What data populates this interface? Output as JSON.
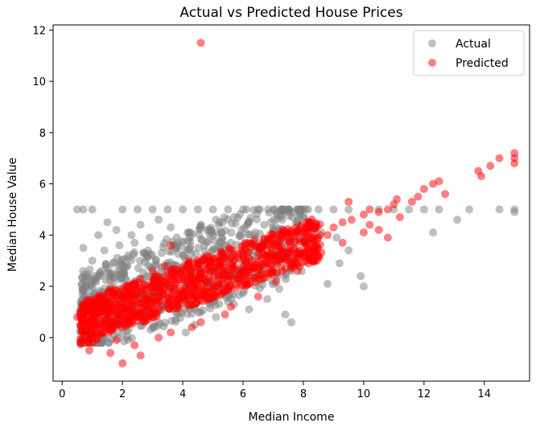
{
  "chart_data": {
    "type": "scatter",
    "title": "Actual vs Predicted House Prices",
    "xlabel": "Median Income",
    "ylabel": "Median House Value",
    "xlim": [
      -0.3,
      15.5
    ],
    "ylim": [
      -1.7,
      12.2
    ],
    "xticks": [
      0,
      2,
      4,
      6,
      8,
      10,
      12,
      14
    ],
    "yticks": [
      0,
      2,
      4,
      6,
      8,
      10,
      12
    ],
    "grid": false,
    "legend_position": "top-right",
    "series": [
      {
        "name": "Actual",
        "color": "#808080",
        "opacity": 0.5,
        "points": [
          [
            0.5,
            5.0
          ],
          [
            0.7,
            5.0
          ],
          [
            1.0,
            5.0
          ],
          [
            2.0,
            5.0
          ],
          [
            2.5,
            5.0
          ],
          [
            3.0,
            5.0
          ],
          [
            3.5,
            5.0
          ],
          [
            4.0,
            5.0
          ],
          [
            4.5,
            5.0
          ],
          [
            5.0,
            5.0
          ],
          [
            5.5,
            5.0
          ],
          [
            6.0,
            5.0
          ],
          [
            6.5,
            5.0
          ],
          [
            7.0,
            5.0
          ],
          [
            7.5,
            5.0
          ],
          [
            8.0,
            5.0
          ],
          [
            8.5,
            5.0
          ],
          [
            9.0,
            5.0
          ],
          [
            9.5,
            5.0
          ],
          [
            10.5,
            5.0
          ],
          [
            11.0,
            5.0
          ],
          [
            11.5,
            5.0
          ],
          [
            12.0,
            5.0
          ],
          [
            12.5,
            5.0
          ],
          [
            13.5,
            5.0
          ],
          [
            14.5,
            5.0
          ],
          [
            15.0,
            5.0
          ],
          [
            15.0,
            4.9
          ],
          [
            0.7,
            3.5
          ],
          [
            1.2,
            4.0
          ],
          [
            1.5,
            4.5
          ],
          [
            1.8,
            4.2
          ],
          [
            2.3,
            4.0
          ],
          [
            2.6,
            4.4
          ],
          [
            3.2,
            4.6
          ],
          [
            3.6,
            4.3
          ],
          [
            1.0,
            3.0
          ],
          [
            1.4,
            3.4
          ],
          [
            1.9,
            3.6
          ],
          [
            2.4,
            3.7
          ],
          [
            2.9,
            3.9
          ],
          [
            3.3,
            3.3
          ],
          [
            3.8,
            3.6
          ],
          [
            4.2,
            4.1
          ],
          [
            4.6,
            4.4
          ],
          [
            5.1,
            4.6
          ],
          [
            5.7,
            4.7
          ],
          [
            6.2,
            4.5
          ],
          [
            6.7,
            4.4
          ],
          [
            7.3,
            4.6
          ],
          [
            7.8,
            4.5
          ],
          [
            8.3,
            4.3
          ],
          [
            1.3,
            2.6
          ],
          [
            1.7,
            2.9
          ],
          [
            2.2,
            3.1
          ],
          [
            2.7,
            3.3
          ],
          [
            3.1,
            3.0
          ],
          [
            3.5,
            2.8
          ],
          [
            4.0,
            3.2
          ],
          [
            4.8,
            3.7
          ],
          [
            5.3,
            3.9
          ],
          [
            5.9,
            4.0
          ],
          [
            6.4,
            4.1
          ],
          [
            7.0,
            4.2
          ],
          [
            7.6,
            4.0
          ],
          [
            8.6,
            4.1
          ],
          [
            9.1,
            3.9
          ],
          [
            9.5,
            3.4
          ],
          [
            9.2,
            2.9
          ],
          [
            8.8,
            2.1
          ],
          [
            9.9,
            2.4
          ],
          [
            10.0,
            2.0
          ],
          [
            12.3,
            4.1
          ],
          [
            13.1,
            4.6
          ],
          [
            8.0,
            3.2
          ],
          [
            7.6,
            2.6
          ],
          [
            7.2,
            1.9
          ],
          [
            6.8,
            1.5
          ],
          [
            7.4,
            0.9
          ],
          [
            7.6,
            0.6
          ],
          [
            6.2,
            1.1
          ],
          [
            5.7,
            1.3
          ],
          [
            5.1,
            0.8
          ],
          [
            4.4,
            0.5
          ],
          [
            4.1,
            0.2
          ],
          [
            3.0,
            0.4
          ],
          [
            2.5,
            0.8
          ],
          [
            1.9,
            1.0
          ],
          [
            1.2,
            1.4
          ],
          [
            0.8,
            2.0
          ],
          [
            1.1,
            2.3
          ],
          [
            1.6,
            2.0
          ],
          [
            2.1,
            2.3
          ],
          [
            2.8,
            2.4
          ],
          [
            3.4,
            2.1
          ],
          [
            3.9,
            2.5
          ],
          [
            4.5,
            2.8
          ],
          [
            5.0,
            3.1
          ],
          [
            5.6,
            3.4
          ],
          [
            6.1,
            3.5
          ],
          [
            6.6,
            3.7
          ],
          [
            7.1,
            3.6
          ],
          [
            1.5,
            1.0
          ],
          [
            2.0,
            0.9
          ],
          [
            2.6,
            1.5
          ],
          [
            3.2,
            1.6
          ],
          [
            3.7,
            1.9
          ],
          [
            4.3,
            2.2
          ]
        ]
      },
      {
        "name": "Predicted",
        "color": "#ff0000",
        "opacity": 0.5,
        "points": [
          [
            4.6,
            11.5
          ],
          [
            15.0,
            7.2
          ],
          [
            15.0,
            7.0
          ],
          [
            15.0,
            6.8
          ],
          [
            14.5,
            7.0
          ],
          [
            14.2,
            6.7
          ],
          [
            13.8,
            6.5
          ],
          [
            13.9,
            6.3
          ],
          [
            12.5,
            6.1
          ],
          [
            12.3,
            6.0
          ],
          [
            12.0,
            5.8
          ],
          [
            12.7,
            5.6
          ],
          [
            11.8,
            5.5
          ],
          [
            11.6,
            5.3
          ],
          [
            11.1,
            5.4
          ],
          [
            11.0,
            5.2
          ],
          [
            10.8,
            5.0
          ],
          [
            10.5,
            4.9
          ],
          [
            10.2,
            5.0
          ],
          [
            10.0,
            4.8
          ],
          [
            9.6,
            4.6
          ],
          [
            9.5,
            5.3
          ],
          [
            9.3,
            4.5
          ],
          [
            9.0,
            4.3
          ],
          [
            8.8,
            4.0
          ],
          [
            8.5,
            3.9
          ],
          [
            9.3,
            3.7
          ],
          [
            10.2,
            4.4
          ],
          [
            10.5,
            4.2
          ],
          [
            11.2,
            4.7
          ],
          [
            10.0,
            4.1
          ],
          [
            10.8,
            3.9
          ],
          [
            8.2,
            3.4
          ],
          [
            7.8,
            3.2
          ],
          [
            7.5,
            3.3
          ],
          [
            7.2,
            3.0
          ],
          [
            6.8,
            2.9
          ],
          [
            6.5,
            2.8
          ],
          [
            6.2,
            2.6
          ],
          [
            6.0,
            2.4
          ],
          [
            5.8,
            2.3
          ],
          [
            5.5,
            2.2
          ],
          [
            5.2,
            2.0
          ],
          [
            5.0,
            1.9
          ],
          [
            4.7,
            1.8
          ],
          [
            4.4,
            1.6
          ],
          [
            4.1,
            1.5
          ],
          [
            3.8,
            1.4
          ],
          [
            3.5,
            1.3
          ],
          [
            3.2,
            1.1
          ],
          [
            2.9,
            1.0
          ],
          [
            2.6,
            0.9
          ],
          [
            2.3,
            0.8
          ],
          [
            2.0,
            0.7
          ],
          [
            1.7,
            0.6
          ],
          [
            1.4,
            0.5
          ],
          [
            1.1,
            0.4
          ],
          [
            0.8,
            0.3
          ],
          [
            0.5,
            0.8
          ],
          [
            0.6,
            1.0
          ],
          [
            1.0,
            -0.2
          ],
          [
            0.9,
            -0.5
          ],
          [
            1.6,
            -0.6
          ],
          [
            2.0,
            -1.0
          ],
          [
            2.6,
            -0.7
          ],
          [
            2.4,
            -0.3
          ],
          [
            1.8,
            -0.1
          ],
          [
            3.2,
            0.0
          ],
          [
            3.6,
            0.2
          ],
          [
            4.3,
            0.4
          ],
          [
            4.6,
            0.6
          ],
          [
            5.4,
            0.9
          ],
          [
            5.6,
            1.2
          ],
          [
            6.5,
            1.6
          ],
          [
            7.1,
            2.2
          ],
          [
            7.8,
            2.6
          ],
          [
            8.3,
            3.0
          ],
          [
            3.6,
            3.6
          ],
          [
            4.8,
            3.2
          ],
          [
            5.3,
            3.3
          ],
          [
            6.1,
            3.7
          ],
          [
            6.9,
            3.8
          ],
          [
            7.4,
            4.0
          ],
          [
            2.6,
            2.3
          ],
          [
            3.0,
            2.6
          ],
          [
            3.4,
            2.8
          ],
          [
            4.2,
            3.0
          ],
          [
            1.6,
            1.9
          ],
          [
            2.1,
            2.0
          ],
          [
            1.2,
            1.6
          ],
          [
            0.9,
            1.3
          ]
        ]
      }
    ]
  }
}
